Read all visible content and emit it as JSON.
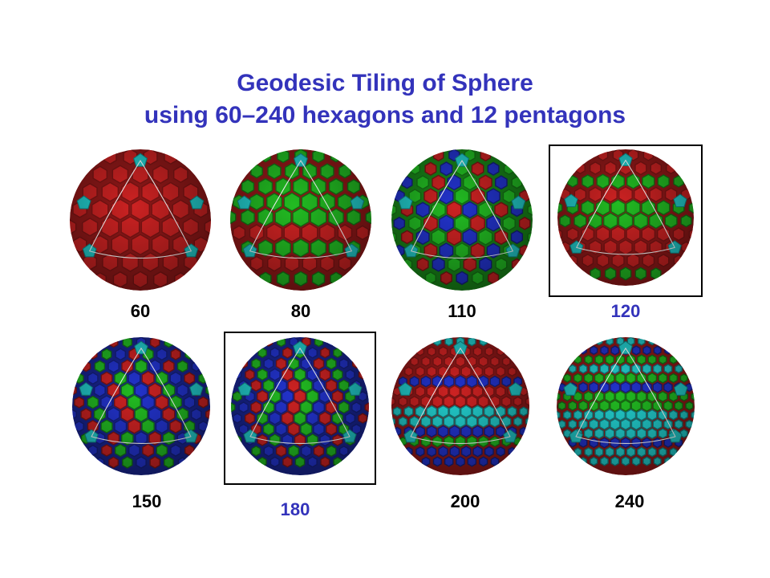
{
  "title": {
    "line1": "Geodesic Tiling of Sphere",
    "line2": "using 60–240 hexagons and 12 pentagons"
  },
  "colors": {
    "title": "#3333bb",
    "highlight_label": "#3333bb",
    "red": "#cc2222",
    "green": "#22bb22",
    "blue": "#2233cc",
    "cyan": "#22cccc"
  },
  "spheres": [
    {
      "label": "60",
      "highlighted": false,
      "framed": false,
      "palette": [
        "red"
      ]
    },
    {
      "label": "80",
      "highlighted": false,
      "framed": false,
      "palette": [
        "red",
        "green"
      ]
    },
    {
      "label": "110",
      "highlighted": false,
      "framed": false,
      "palette": [
        "green",
        "red",
        "blue"
      ]
    },
    {
      "label": "120",
      "highlighted": true,
      "framed": true,
      "palette": [
        "red",
        "green"
      ]
    },
    {
      "label": "150",
      "highlighted": false,
      "framed": false,
      "palette": [
        "blue",
        "red",
        "green"
      ]
    },
    {
      "label": "180",
      "highlighted": true,
      "framed": true,
      "palette": [
        "blue",
        "red",
        "green"
      ]
    },
    {
      "label": "200",
      "highlighted": false,
      "framed": false,
      "palette": [
        "red",
        "green",
        "blue",
        "cyan"
      ]
    },
    {
      "label": "240",
      "highlighted": false,
      "framed": false,
      "palette": [
        "red",
        "blue",
        "green",
        "cyan"
      ]
    }
  ]
}
